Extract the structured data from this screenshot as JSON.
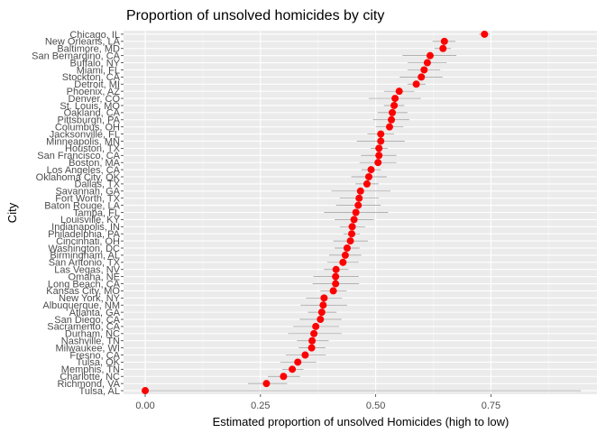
{
  "chart_data": {
    "type": "scatter",
    "title": "Proportion of unsolved homicides by city",
    "xlabel": "Estimated proportion of unsolved Homicides (high to low)",
    "ylabel": "City",
    "xlim": [
      -0.047,
      0.98
    ],
    "x_ticks": [
      0.0,
      0.25,
      0.5,
      0.75
    ],
    "x_tick_labels": [
      "0.00",
      "0.25",
      "0.50",
      "0.75"
    ],
    "grid": true,
    "legend": "none",
    "point_color": "#ff0000",
    "errorbar_color": "#999999",
    "panel_color": "#ebebeb",
    "points": [
      {
        "city": "Chicago, IL",
        "estimate": 0.736,
        "lower": 0.724,
        "upper": 0.747
      },
      {
        "city": "New Orleans, LA",
        "estimate": 0.649,
        "lower": 0.623,
        "upper": 0.673
      },
      {
        "city": "Baltimore, MD",
        "estimate": 0.646,
        "lower": 0.628,
        "upper": 0.663
      },
      {
        "city": "San Bernardino, CA",
        "estimate": 0.618,
        "lower": 0.558,
        "upper": 0.675
      },
      {
        "city": "Buffalo, NY",
        "estimate": 0.612,
        "lower": 0.569,
        "upper": 0.654
      },
      {
        "city": "Miami, FL",
        "estimate": 0.605,
        "lower": 0.569,
        "upper": 0.64
      },
      {
        "city": "Stockton, CA",
        "estimate": 0.599,
        "lower": 0.552,
        "upper": 0.645
      },
      {
        "city": "Detroit, MI",
        "estimate": 0.588,
        "lower": 0.569,
        "upper": 0.608
      },
      {
        "city": "Phoenix, AZ",
        "estimate": 0.551,
        "lower": 0.518,
        "upper": 0.584
      },
      {
        "city": "Denver, CO",
        "estimate": 0.542,
        "lower": 0.485,
        "upper": 0.598
      },
      {
        "city": "St. Louis, MO",
        "estimate": 0.54,
        "lower": 0.518,
        "upper": 0.562
      },
      {
        "city": "Oakland, CA",
        "estimate": 0.536,
        "lower": 0.504,
        "upper": 0.569
      },
      {
        "city": "Pittsburgh, PA",
        "estimate": 0.534,
        "lower": 0.494,
        "upper": 0.573
      },
      {
        "city": "Columbus, OH",
        "estimate": 0.53,
        "lower": 0.5,
        "upper": 0.56
      },
      {
        "city": "Jacksonville, FL",
        "estimate": 0.511,
        "lower": 0.482,
        "upper": 0.54
      },
      {
        "city": "Minneapolis, MN",
        "estimate": 0.511,
        "lower": 0.459,
        "upper": 0.563
      },
      {
        "city": "Houston, TX",
        "estimate": 0.507,
        "lower": 0.489,
        "upper": 0.526
      },
      {
        "city": "San Francisco, CA",
        "estimate": 0.507,
        "lower": 0.468,
        "upper": 0.545
      },
      {
        "city": "Boston, MA",
        "estimate": 0.505,
        "lower": 0.465,
        "upper": 0.545
      },
      {
        "city": "Los Angeles, CA",
        "estimate": 0.49,
        "lower": 0.469,
        "upper": 0.511
      },
      {
        "city": "Oklahoma City, OK",
        "estimate": 0.485,
        "lower": 0.447,
        "upper": 0.524
      },
      {
        "city": "Dallas, TX",
        "estimate": 0.481,
        "lower": 0.456,
        "upper": 0.506
      },
      {
        "city": "Savannah, GA",
        "estimate": 0.467,
        "lower": 0.404,
        "upper": 0.532
      },
      {
        "city": "Fort Worth, TX",
        "estimate": 0.464,
        "lower": 0.422,
        "upper": 0.507
      },
      {
        "city": "Baton Rouge, LA",
        "estimate": 0.462,
        "lower": 0.414,
        "upper": 0.511
      },
      {
        "city": "Tampa, FL",
        "estimate": 0.457,
        "lower": 0.388,
        "upper": 0.527
      },
      {
        "city": "Louisville, KY",
        "estimate": 0.453,
        "lower": 0.411,
        "upper": 0.496
      },
      {
        "city": "Indianapolis, IN",
        "estimate": 0.449,
        "lower": 0.422,
        "upper": 0.477
      },
      {
        "city": "Philadelphia, PA",
        "estimate": 0.448,
        "lower": 0.43,
        "upper": 0.466
      },
      {
        "city": "Cincinnati, OH",
        "estimate": 0.445,
        "lower": 0.408,
        "upper": 0.483
      },
      {
        "city": "Washington, DC",
        "estimate": 0.438,
        "lower": 0.411,
        "upper": 0.465
      },
      {
        "city": "Birmingham, AL",
        "estimate": 0.434,
        "lower": 0.399,
        "upper": 0.469
      },
      {
        "city": "San Antonio, TX",
        "estimate": 0.429,
        "lower": 0.395,
        "upper": 0.463
      },
      {
        "city": "Las Vegas, NV",
        "estimate": 0.414,
        "lower": 0.388,
        "upper": 0.441
      },
      {
        "city": "Omaha, NE",
        "estimate": 0.413,
        "lower": 0.365,
        "upper": 0.463
      },
      {
        "city": "Long Beach, CA",
        "estimate": 0.413,
        "lower": 0.363,
        "upper": 0.464
      },
      {
        "city": "Kansas City, MO",
        "estimate": 0.408,
        "lower": 0.38,
        "upper": 0.437
      },
      {
        "city": "New York, NY",
        "estimate": 0.388,
        "lower": 0.349,
        "upper": 0.427
      },
      {
        "city": "Albuquerque, NM",
        "estimate": 0.386,
        "lower": 0.337,
        "upper": 0.438
      },
      {
        "city": "Atlanta, GA",
        "estimate": 0.383,
        "lower": 0.353,
        "upper": 0.415
      },
      {
        "city": "San Diego, CA",
        "estimate": 0.38,
        "lower": 0.335,
        "upper": 0.426
      },
      {
        "city": "Sacramento, CA",
        "estimate": 0.37,
        "lower": 0.321,
        "upper": 0.421
      },
      {
        "city": "Durham, NC",
        "estimate": 0.366,
        "lower": 0.31,
        "upper": 0.426
      },
      {
        "city": "Nashville, TN",
        "estimate": 0.362,
        "lower": 0.329,
        "upper": 0.398
      },
      {
        "city": "Milwaukee, WI",
        "estimate": 0.361,
        "lower": 0.333,
        "upper": 0.391
      },
      {
        "city": "Fresno, CA",
        "estimate": 0.347,
        "lower": 0.305,
        "upper": 0.392
      },
      {
        "city": "Tulsa, OK",
        "estimate": 0.331,
        "lower": 0.293,
        "upper": 0.371
      },
      {
        "city": "Memphis, TN",
        "estimate": 0.319,
        "lower": 0.297,
        "upper": 0.343
      },
      {
        "city": "Charlotte, NC",
        "estimate": 0.3,
        "lower": 0.266,
        "upper": 0.336
      },
      {
        "city": "Richmond, VA",
        "estimate": 0.263,
        "lower": 0.223,
        "upper": 0.308
      },
      {
        "city": "Tulsa, AL",
        "estimate": 0.0,
        "lower": 0.0,
        "upper": 0.945
      }
    ]
  }
}
